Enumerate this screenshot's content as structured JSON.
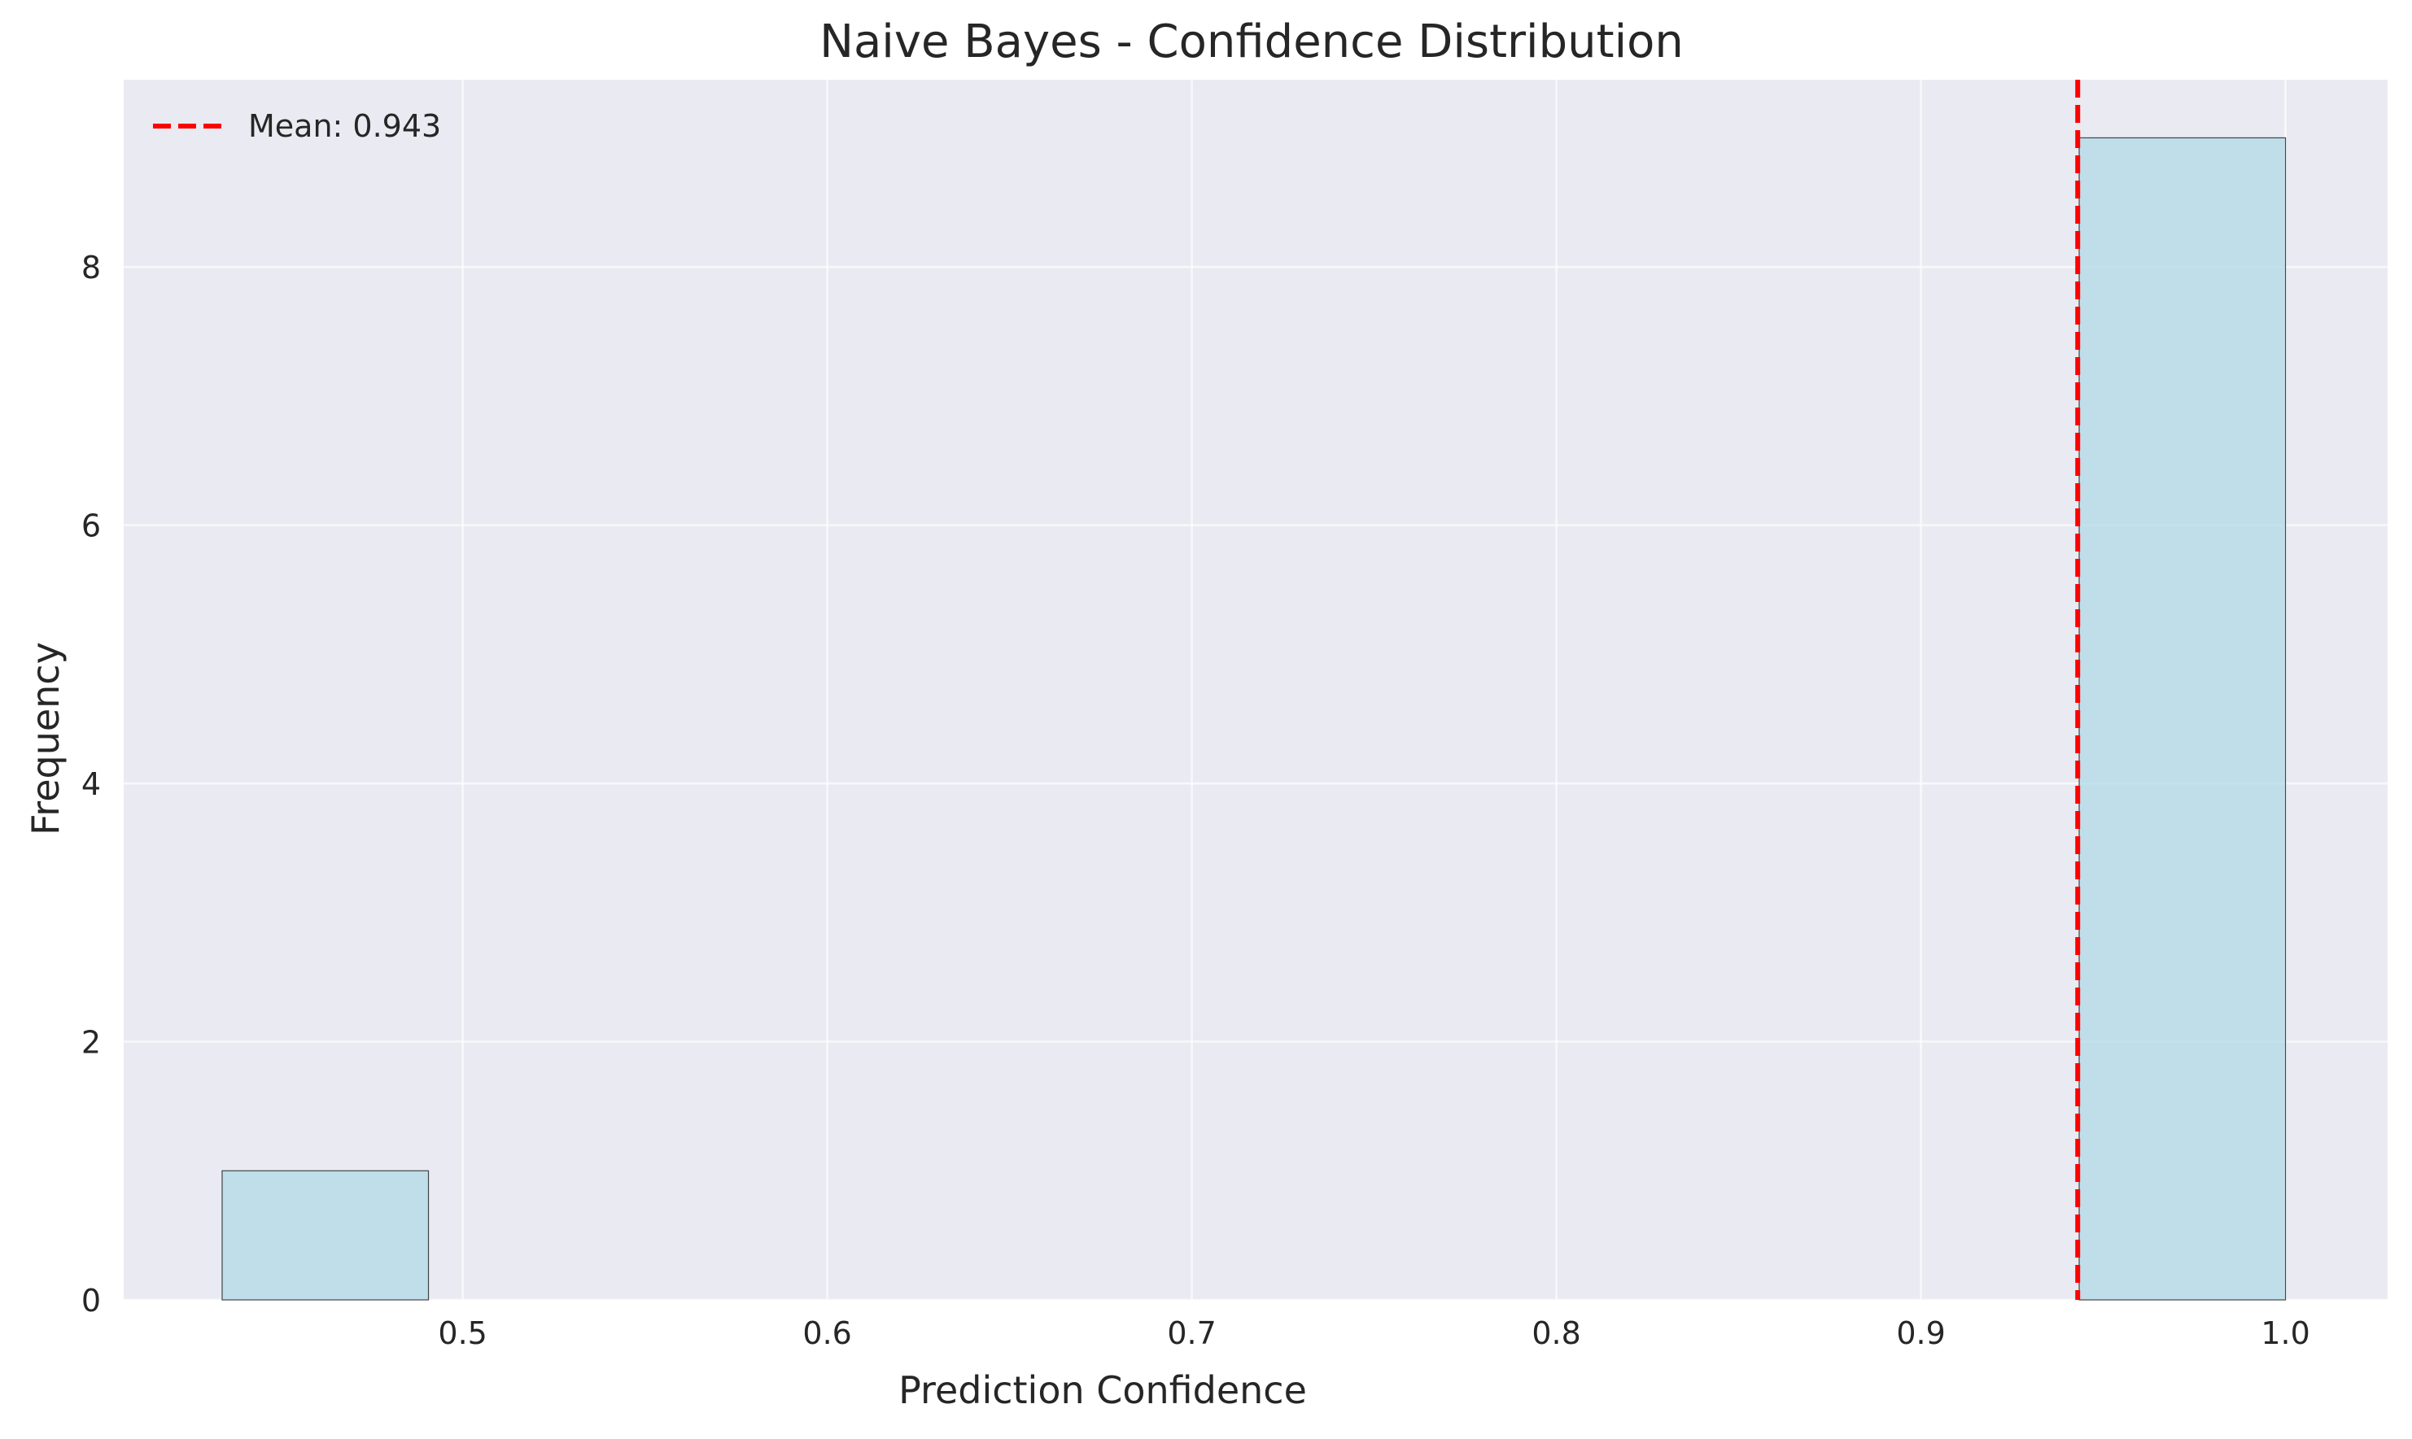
{
  "chart_data": {
    "type": "bar",
    "subtype": "histogram",
    "title": "Naive Bayes - Confidence Distribution",
    "xlabel": "Prediction Confidence",
    "ylabel": "Frequency",
    "xlim": [
      0.407,
      1.028
    ],
    "ylim": [
      0,
      9.45
    ],
    "xticks": [
      0.5,
      0.6,
      0.7,
      0.8,
      0.9,
      1.0
    ],
    "xtick_labels": [
      "0.5",
      "0.6",
      "0.7",
      "0.8",
      "0.9",
      "1.0"
    ],
    "yticks": [
      0,
      2,
      4,
      6,
      8
    ],
    "ytick_labels": [
      "0",
      "2",
      "4",
      "6",
      "8"
    ],
    "bins": [
      {
        "x0": 0.434,
        "x1": 0.4906,
        "count": 1
      },
      {
        "x0": 0.4906,
        "x1": 0.5472,
        "count": 0
      },
      {
        "x0": 0.5472,
        "x1": 0.6038,
        "count": 0
      },
      {
        "x0": 0.6038,
        "x1": 0.6604,
        "count": 0
      },
      {
        "x0": 0.6604,
        "x1": 0.717,
        "count": 0
      },
      {
        "x0": 0.717,
        "x1": 0.7736,
        "count": 0
      },
      {
        "x0": 0.7736,
        "x1": 0.8302,
        "count": 0
      },
      {
        "x0": 0.8302,
        "x1": 0.8868,
        "count": 0
      },
      {
        "x0": 0.8868,
        "x1": 0.9434,
        "count": 0
      },
      {
        "x0": 0.9434,
        "x1": 1.0,
        "count": 9
      }
    ],
    "mean_line": {
      "value": 0.943,
      "label": "Mean: 0.943",
      "color": "#ff0000"
    },
    "bar_color": "#add8e6",
    "bar_edge_color": "#000000",
    "background_color": "#eaeaf2",
    "grid": true,
    "legend_position": "top-left"
  }
}
